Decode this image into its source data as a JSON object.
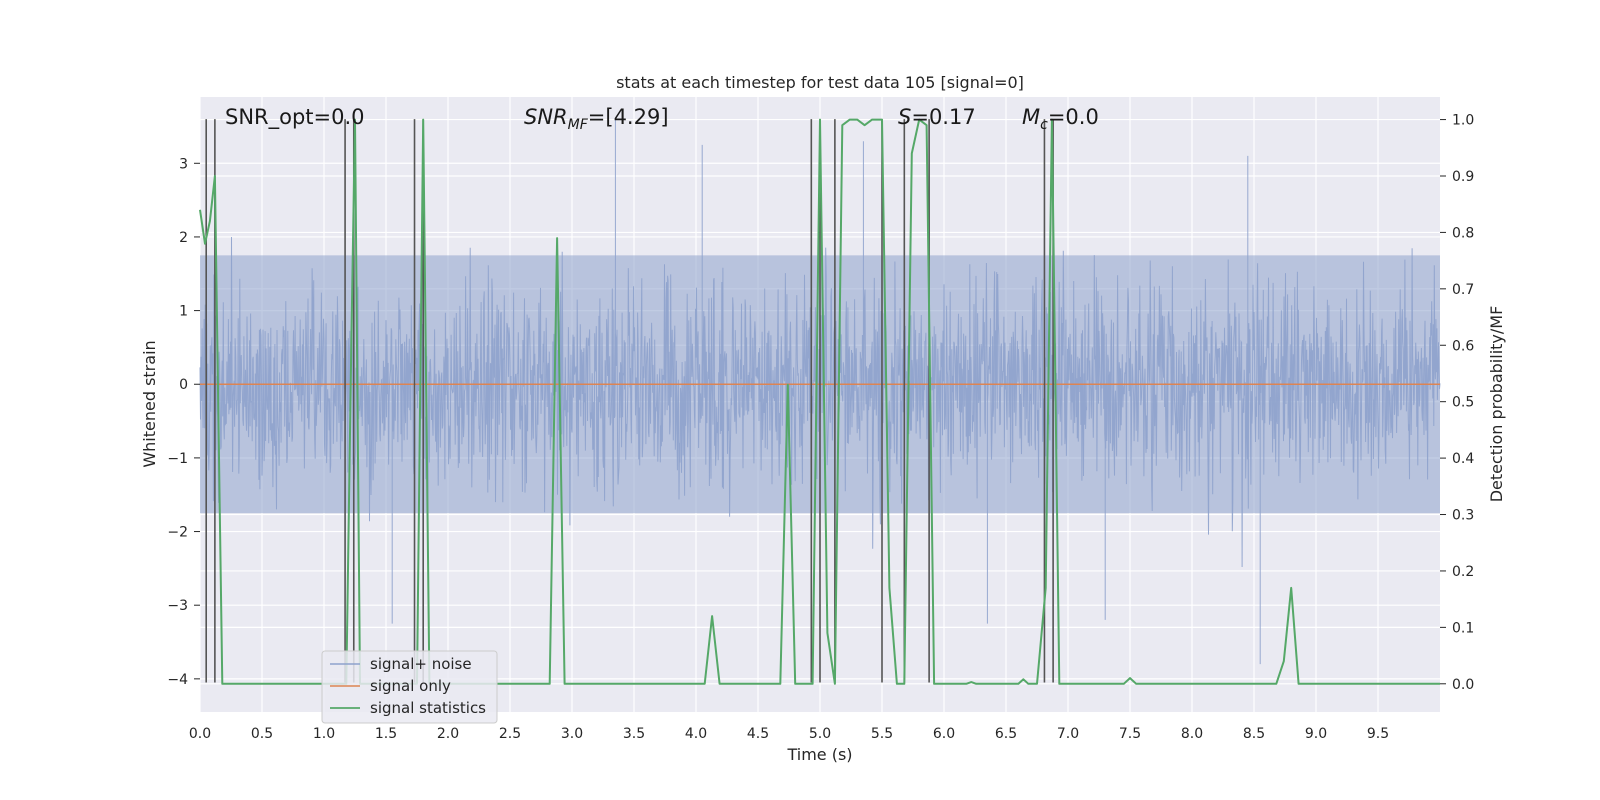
{
  "chart_data": {
    "type": "line",
    "title": "stats at each timestep for test data 105 [signal=0]",
    "xlabel": "Time (s)",
    "ylabel": "Whitened strain",
    "y2label": "Detection probability/MF",
    "xlim": [
      0,
      10
    ],
    "ylim": [
      -4.45,
      3.9
    ],
    "y2lim": [
      -0.05,
      1.04
    ],
    "xticks": [
      "0.0",
      "0.5",
      "1.0",
      "1.5",
      "2.0",
      "2.5",
      "3.0",
      "3.5",
      "4.0",
      "4.5",
      "5.0",
      "5.5",
      "6.0",
      "6.5",
      "7.0",
      "7.5",
      "8.0",
      "8.5",
      "9.0",
      "9.5"
    ],
    "yticks": [
      "3",
      "2",
      "1",
      "0",
      "−1",
      "−2",
      "−3",
      "−4"
    ],
    "y2ticks": [
      "1.0",
      "0.9",
      "0.8",
      "0.7",
      "0.6",
      "0.5",
      "0.4",
      "0.3",
      "0.2",
      "0.1",
      "0.0"
    ],
    "grid": true,
    "legend_position": "lower-left",
    "colors": {
      "signal_noise": "#8ea2cc",
      "signal_only": "#dd8452",
      "signal_statistics": "#55a868",
      "vlines": "#555555",
      "background": "#eaeaf2",
      "grid": "#ffffff"
    },
    "series": [
      {
        "name": "signal+ noise",
        "description_hidden": true,
        "noise_envelope_lower": -1.75,
        "noise_envelope_upper": 1.75,
        "spike_max": [
          {
            "x": 3.35,
            "y": 3.6
          },
          {
            "x": 4.05,
            "y": 3.25
          },
          {
            "x": 5.35,
            "y": 3.3
          },
          {
            "x": 8.45,
            "y": 3.1
          }
        ],
        "spike_min": [
          {
            "x": 8.55,
            "y": -3.8
          },
          {
            "x": 7.3,
            "y": -3.2
          },
          {
            "x": 6.35,
            "y": -3.25
          },
          {
            "x": 1.55,
            "y": -3.25
          },
          {
            "x": 0.05,
            "y": -2.8
          }
        ]
      },
      {
        "name": "signal only",
        "values_constant": 0.0
      },
      {
        "name": "signal statistics",
        "points": [
          [
            0.0,
            0.84
          ],
          [
            0.04,
            0.78
          ],
          [
            0.08,
            0.82
          ],
          [
            0.12,
            0.9
          ],
          [
            0.18,
            0.0
          ],
          [
            1.18,
            0.0
          ],
          [
            1.22,
            0.6
          ],
          [
            1.25,
            1.0
          ],
          [
            1.29,
            0.0
          ],
          [
            1.75,
            0.0
          ],
          [
            1.8,
            1.0
          ],
          [
            1.85,
            0.0
          ],
          [
            2.82,
            0.0
          ],
          [
            2.88,
            0.79
          ],
          [
            2.94,
            0.0
          ],
          [
            4.07,
            0.0
          ],
          [
            4.13,
            0.12
          ],
          [
            4.19,
            0.0
          ],
          [
            4.68,
            0.0
          ],
          [
            4.74,
            0.53
          ],
          [
            4.8,
            0.0
          ],
          [
            4.94,
            0.0
          ],
          [
            5.0,
            1.0
          ],
          [
            5.06,
            0.09
          ],
          [
            5.12,
            0.0
          ],
          [
            5.18,
            0.99
          ],
          [
            5.24,
            1.0
          ],
          [
            5.3,
            1.0
          ],
          [
            5.36,
            0.99
          ],
          [
            5.42,
            1.0
          ],
          [
            5.5,
            1.0
          ],
          [
            5.56,
            0.17
          ],
          [
            5.62,
            0.0
          ],
          [
            5.68,
            0.0
          ],
          [
            5.74,
            0.94
          ],
          [
            5.8,
            1.0
          ],
          [
            5.86,
            0.99
          ],
          [
            5.92,
            0.0
          ],
          [
            6.18,
            0.0
          ],
          [
            6.22,
            0.003
          ],
          [
            6.26,
            0.0
          ],
          [
            6.6,
            0.0
          ],
          [
            6.64,
            0.008
          ],
          [
            6.68,
            0.0
          ],
          [
            6.75,
            0.0
          ],
          [
            6.82,
            0.17
          ],
          [
            6.87,
            1.0
          ],
          [
            6.93,
            0.0
          ],
          [
            7.45,
            0.0
          ],
          [
            7.5,
            0.01
          ],
          [
            7.55,
            0.0
          ],
          [
            8.68,
            0.0
          ],
          [
            8.74,
            0.04
          ],
          [
            8.8,
            0.17
          ],
          [
            8.86,
            0.0
          ],
          [
            10.0,
            0.0
          ]
        ]
      }
    ],
    "vertical_lines_x": [
      0.05,
      0.12,
      1.17,
      1.24,
      1.73,
      1.8,
      4.93,
      5.0,
      5.12,
      5.5,
      5.68,
      5.88,
      6.81,
      6.88
    ],
    "annotations": [
      {
        "id": "snr_opt",
        "text": "SNR_opt=0.0"
      },
      {
        "id": "snr_mf",
        "math": "SNR",
        "sub": "MF",
        "rest": "=[4.29]"
      },
      {
        "id": "s",
        "math": "S",
        "rest": "=0.17"
      },
      {
        "id": "mc",
        "math": "M",
        "sub": "c",
        "rest": "=0.0"
      }
    ]
  }
}
